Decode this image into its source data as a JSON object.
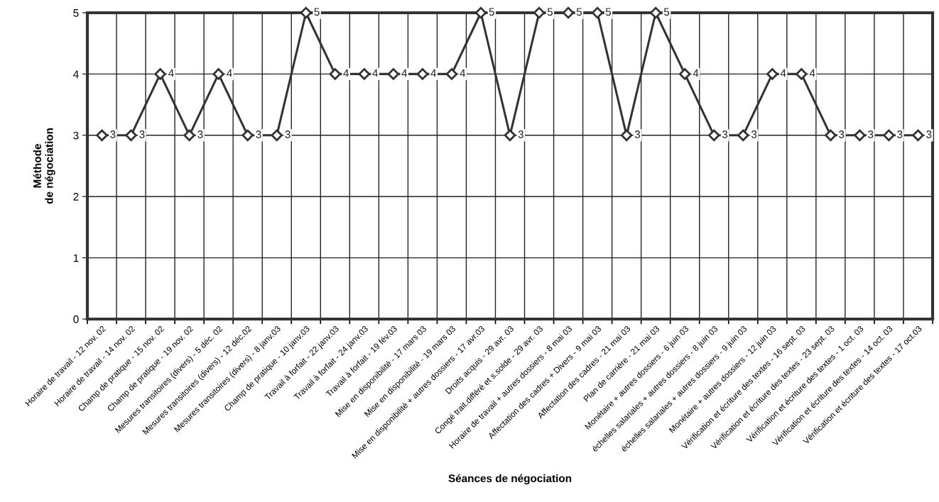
{
  "chart_data": {
    "type": "line",
    "xlabel": "Séances de négociation",
    "ylabel": "Méthode\nde négociation",
    "categories": [
      "Horaire de travail - 12 nov. 02",
      "Horaire de travail - 14 nov. 02",
      "Champ de pratique - 15 nov. 02",
      "Champ de pratique - 19 nov. 02",
      "Mesures transitoires (divers) - 5 déc. 02",
      "Mesures transitoires (divers) - 12 déc.02",
      "Mesures transitoires (divers) - 8 janv.03",
      "Champ de pratique - 10 janv.03",
      "Travail à forfait - 22 janv.03",
      "Travail à forfait - 24 janv.03",
      "Travail à forfait - 19 fév.03",
      "Mise en disponibilité - 17 mars 03",
      "Mise en disponibilité - 19 mars 03",
      "Mise en disponibilité + autres dossiers - 17 avr.03",
      "Droits acquis - 29 avr. 03",
      "Congé trait.différé et s.solde - 29 avr. 03",
      "Horaire de travail + autres dossiers - 8 mai 03",
      "Affectation des cadres + Divers - 9 mai 03",
      "Affectation des cadres - 21 mai 03",
      "Plan de carrière - 21 mai 03",
      "Monétaire + autres dossiers - 6 juin 03",
      "échelles salariales + autres dossiers - 8 juin 03",
      "échelles salariales + autres dossiers - 9 juin 03",
      "Monétaire + autres dossiers - 12 juin 03",
      "Vérification et écriture des textes - 16 sept. 03",
      "Vérification et écriture des textes - 23 sept. 03",
      "Vérification et écriture des textes - 1 oct. 03",
      "Vérification et écriture des textes - 14 oct. 03",
      "Vérification et écriture des textes - 17 oct.03"
    ],
    "series": [
      {
        "color": "#333333",
        "values": [
          3,
          3,
          4,
          3,
          4,
          3,
          3,
          5,
          4,
          4,
          4,
          4,
          4,
          5,
          3,
          5,
          5,
          5,
          3,
          5,
          4,
          3,
          3,
          4,
          4,
          3,
          3,
          3,
          3
        ]
      }
    ],
    "ylim": [
      0,
      5
    ],
    "yticks": [
      0,
      1,
      2,
      3,
      4,
      5
    ],
    "grid": true,
    "marker": "diamond",
    "line_style": "solid",
    "data_labels": true
  }
}
